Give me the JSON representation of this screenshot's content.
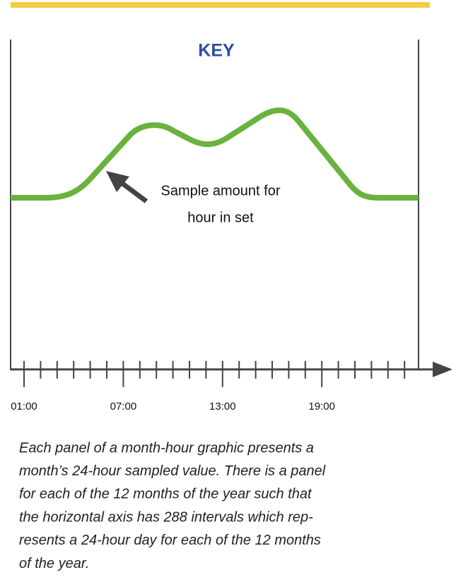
{
  "key": {
    "title": "KEY",
    "annotation": [
      "Sample amount for",
      "hour in set"
    ],
    "axis_labels": [
      "01:00",
      "07:00",
      "13:00",
      "19:00"
    ]
  },
  "caption": {
    "lines": [
      "Each panel of a month-hour graphic presents a",
      "month’s 24-hour sampled value. There is a panel",
      "for each of the 12 months of the year such that",
      "the horizontal axis has 288 intervals which rep-",
      "resents a 24-hour day for each of the 12 months",
      "of the year."
    ]
  }
}
